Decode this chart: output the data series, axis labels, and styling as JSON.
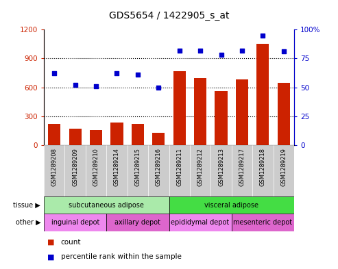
{
  "title": "GDS5654 / 1422905_s_at",
  "samples": [
    "GSM1289208",
    "GSM1289209",
    "GSM1289210",
    "GSM1289214",
    "GSM1289215",
    "GSM1289216",
    "GSM1289211",
    "GSM1289212",
    "GSM1289213",
    "GSM1289217",
    "GSM1289218",
    "GSM1289219"
  ],
  "counts": [
    220,
    175,
    155,
    235,
    225,
    130,
    770,
    700,
    560,
    680,
    1050,
    650
  ],
  "percentiles": [
    62,
    52,
    51,
    62,
    61,
    50,
    82,
    82,
    78,
    82,
    95,
    81
  ],
  "bar_color": "#cc2200",
  "dot_color": "#0000cc",
  "left_ylim": [
    0,
    1200
  ],
  "right_ylim": [
    0,
    100
  ],
  "left_yticks": [
    0,
    300,
    600,
    900,
    1200
  ],
  "right_yticks": [
    0,
    25,
    50,
    75,
    100
  ],
  "right_yticklabels": [
    "0",
    "25",
    "50",
    "75",
    "100%"
  ],
  "tissue_groups": [
    {
      "label": "subcutaneous adipose",
      "start": 0,
      "end": 6,
      "color": "#aaeaaa"
    },
    {
      "label": "visceral adipose",
      "start": 6,
      "end": 12,
      "color": "#44dd44"
    }
  ],
  "other_groups": [
    {
      "label": "inguinal depot",
      "start": 0,
      "end": 3,
      "color": "#ee88ee"
    },
    {
      "label": "axillary depot",
      "start": 3,
      "end": 6,
      "color": "#dd66cc"
    },
    {
      "label": "epididymal depot",
      "start": 6,
      "end": 9,
      "color": "#ee88ee"
    },
    {
      "label": "mesenteric depot",
      "start": 9,
      "end": 12,
      "color": "#dd66cc"
    }
  ],
  "tissue_label": "tissue",
  "other_label": "other",
  "legend_count_label": "count",
  "legend_pct_label": "percentile rank within the sample",
  "background_color": "#ffffff",
  "tick_label_color_left": "#cc2200",
  "tick_label_color_right": "#0000cc",
  "title_fontsize": 10,
  "axis_fontsize": 7.5,
  "bar_width": 0.6,
  "sample_bg_color": "#cccccc",
  "sample_border_color": "#888888"
}
